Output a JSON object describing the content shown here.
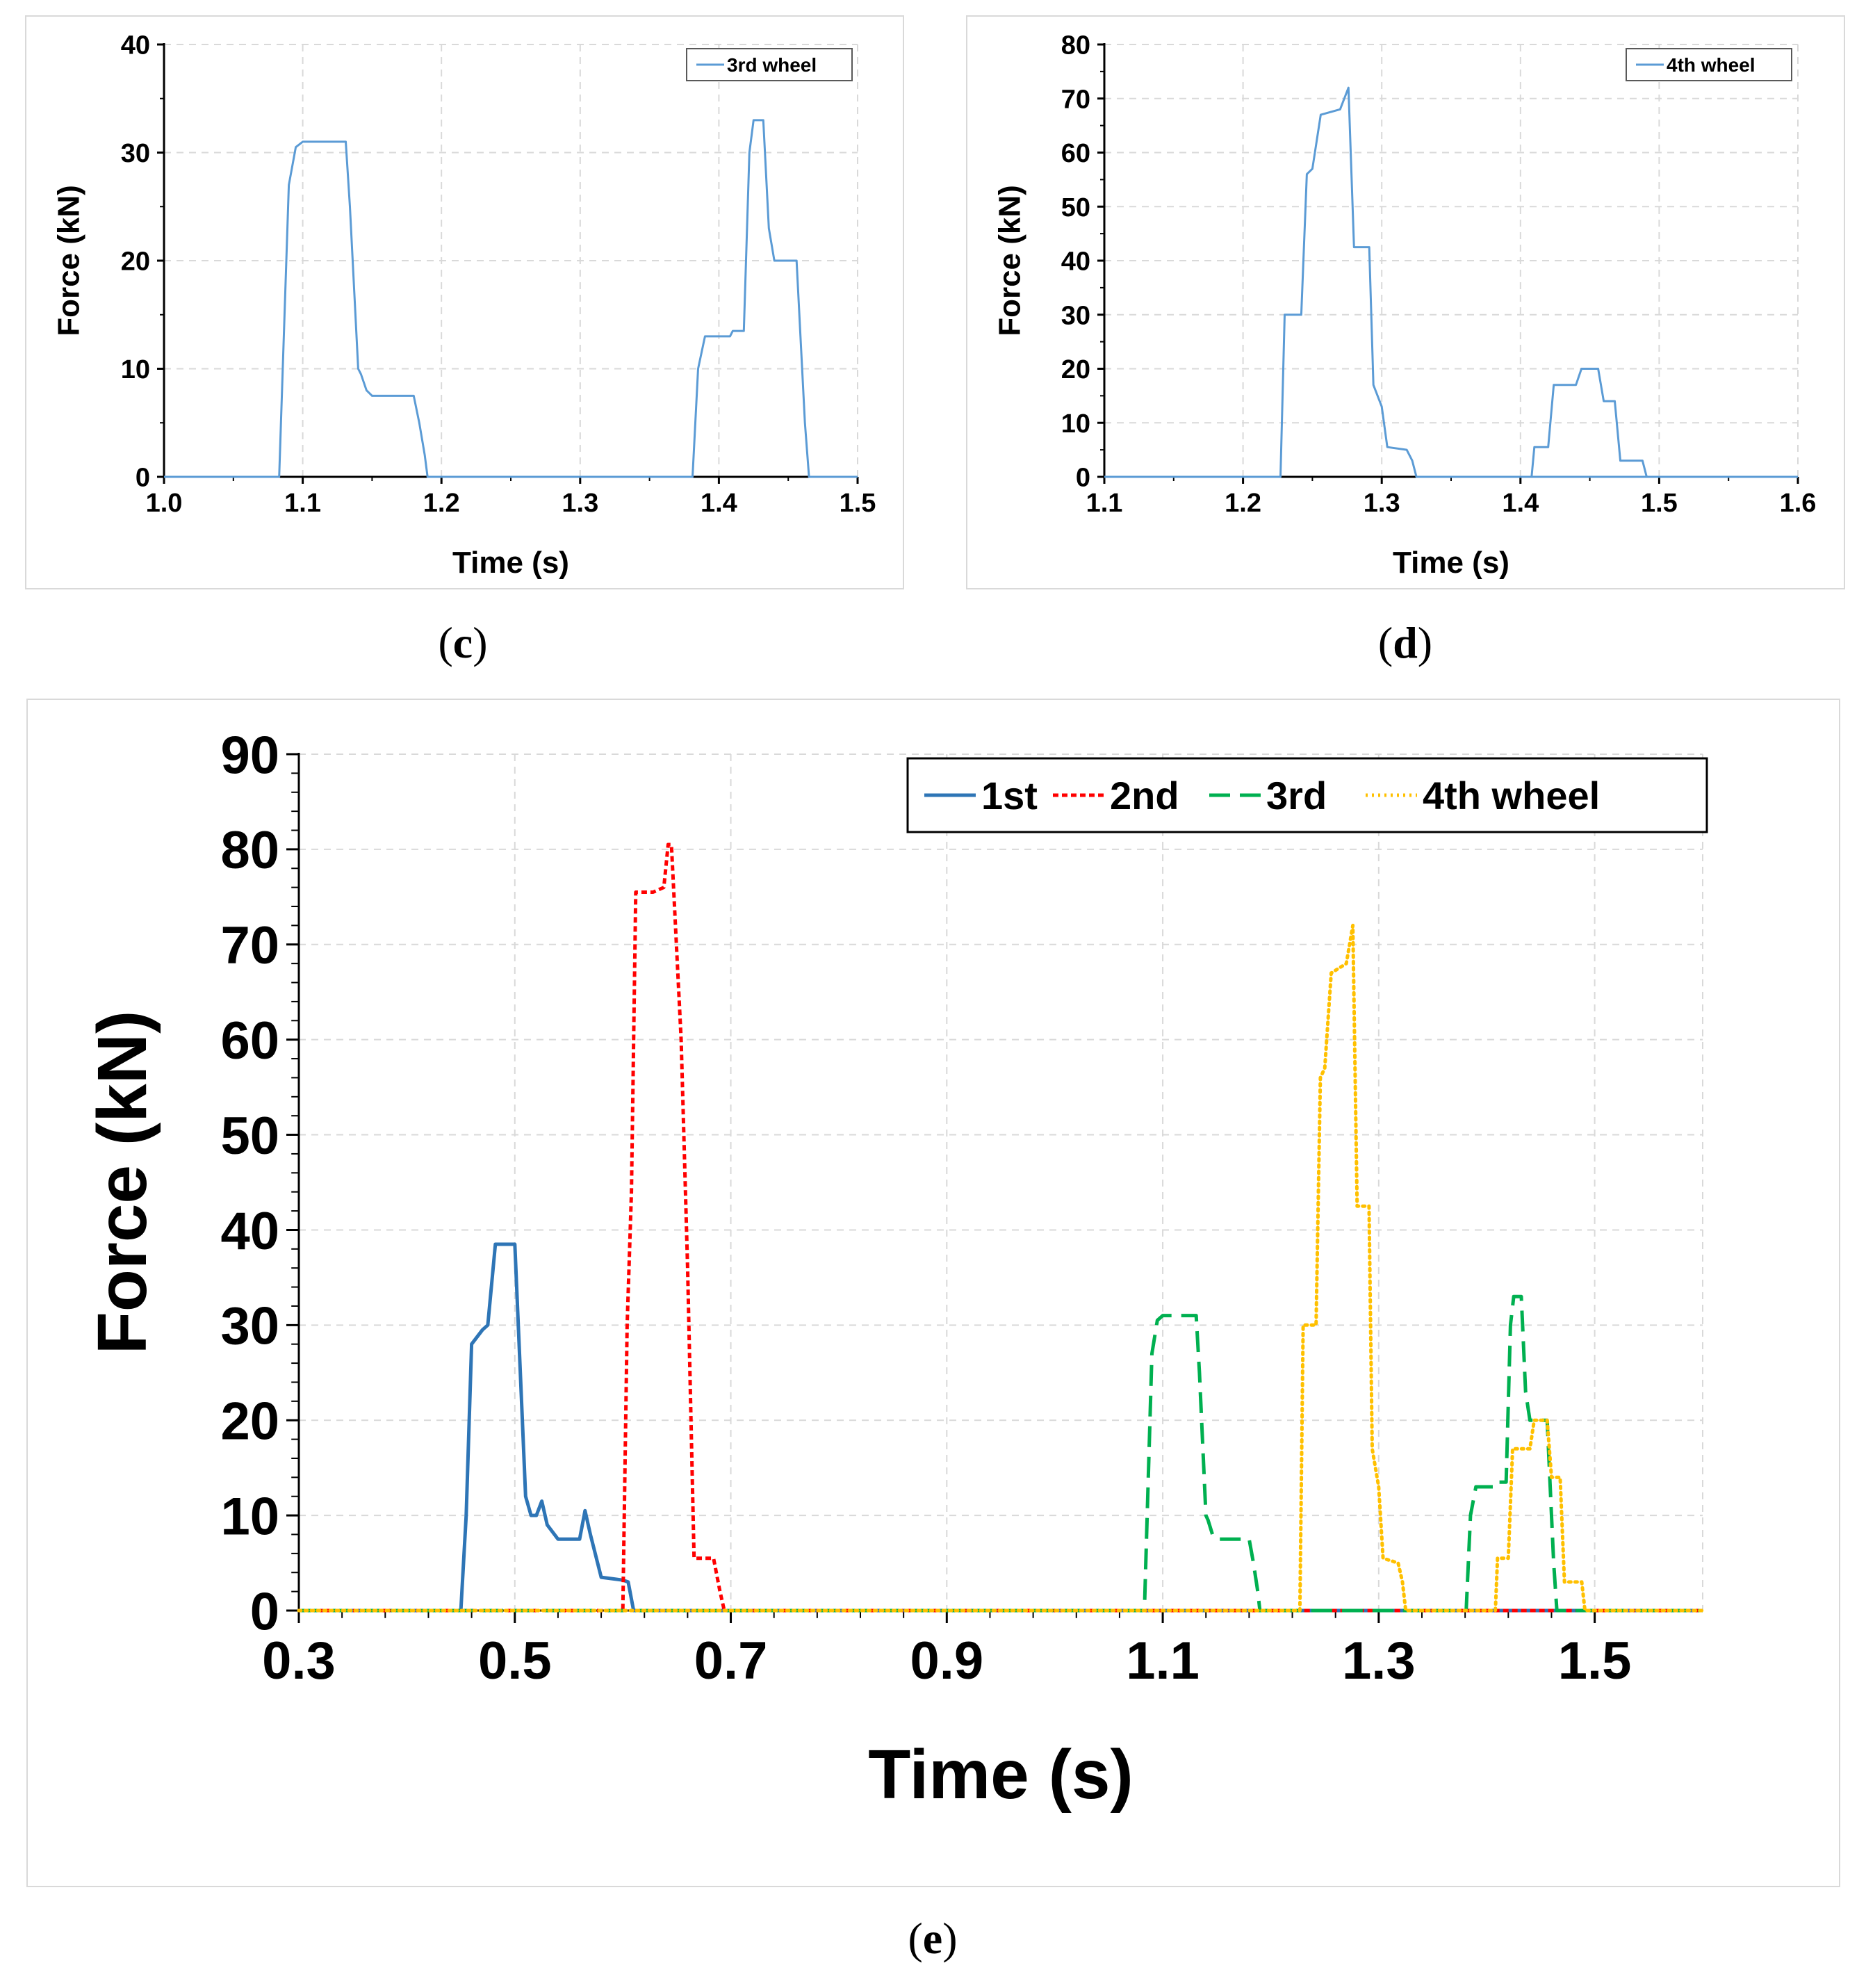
{
  "captions": {
    "c": "c",
    "d": "d",
    "e": "e"
  },
  "chart_data": [
    {
      "id": "c",
      "type": "line",
      "xlabel": "Time (s)",
      "ylabel": "Force (kN)",
      "xlim": [
        1.0,
        1.5
      ],
      "ylim": [
        0,
        40
      ],
      "xticks": [
        "1.0",
        "1.1",
        "1.2",
        "1.3",
        "1.4",
        "1.5"
      ],
      "yticks": [
        "0",
        "10",
        "20",
        "30",
        "40"
      ],
      "grid": true,
      "legend_position": "top-right",
      "series": [
        {
          "name": "3rd wheel",
          "color": "#5b9bd5",
          "dash": "solid",
          "x": [
            1.0,
            1.083,
            1.09,
            1.095,
            1.1,
            1.131,
            1.134,
            1.14,
            1.142,
            1.146,
            1.15,
            1.18,
            1.184,
            1.188,
            1.19,
            1.381,
            1.385,
            1.39,
            1.408,
            1.41,
            1.418,
            1.422,
            1.425,
            1.432,
            1.436,
            1.44,
            1.456,
            1.462,
            1.465,
            1.5
          ],
          "y": [
            0,
            0,
            27,
            30.5,
            31,
            31,
            25,
            10,
            9.5,
            8,
            7.5,
            7.5,
            5,
            2,
            0,
            0,
            10,
            13,
            13,
            13.5,
            13.5,
            30,
            33,
            33,
            23,
            20,
            20,
            5,
            0,
            0
          ]
        }
      ]
    },
    {
      "id": "d",
      "type": "line",
      "xlabel": "Time (s)",
      "ylabel": "Force (kN)",
      "xlim": [
        1.1,
        1.6
      ],
      "ylim": [
        0,
        80
      ],
      "xticks": [
        "1.1",
        "1.2",
        "1.3",
        "1.4",
        "1.5",
        "1.6"
      ],
      "yticks": [
        "0",
        "10",
        "20",
        "30",
        "40",
        "50",
        "60",
        "70",
        "80"
      ],
      "grid": true,
      "legend_position": "top-right",
      "series": [
        {
          "name": "4th wheel",
          "color": "#5b9bd5",
          "dash": "solid",
          "x": [
            1.1,
            1.227,
            1.23,
            1.242,
            1.246,
            1.25,
            1.256,
            1.27,
            1.276,
            1.28,
            1.291,
            1.294,
            1.3,
            1.304,
            1.318,
            1.322,
            1.325,
            1.6
          ],
          "y": [
            0,
            0,
            30,
            30,
            56,
            57,
            67,
            68,
            72,
            42.5,
            42.5,
            17,
            13,
            5.5,
            5,
            3,
            0,
            0
          ],
          "x2": [
            1.408,
            1.41,
            1.42,
            1.424,
            1.44,
            1.444,
            1.456,
            1.46,
            1.468,
            1.472,
            1.488,
            1.491
          ],
          "y2": [
            0,
            5.5,
            5.5,
            17,
            17,
            20,
            20,
            14,
            14,
            3,
            3,
            0
          ]
        }
      ]
    },
    {
      "id": "e",
      "type": "line",
      "xlabel": "Time (s)",
      "ylabel": "Force (kN)",
      "xlim": [
        0.3,
        1.6
      ],
      "ylim": [
        0,
        90
      ],
      "xticks": [
        "0.3",
        "0.5",
        "0.7",
        "0.9",
        "1.1",
        "1.3",
        "1.5"
      ],
      "yticks": [
        "0",
        "10",
        "20",
        "30",
        "40",
        "50",
        "60",
        "70",
        "80",
        "90"
      ],
      "grid": true,
      "legend_position": "top-right",
      "legend_labels": [
        "1st",
        "2nd",
        "3rd",
        "4th wheel"
      ],
      "series": [
        {
          "name": "1st",
          "color": "#2e75b6",
          "dash": "solid",
          "x": [
            0.3,
            0.45,
            0.455,
            0.46,
            0.47,
            0.475,
            0.482,
            0.5,
            0.51,
            0.515,
            0.52,
            0.525,
            0.53,
            0.54,
            0.56,
            0.565,
            0.57,
            0.58,
            0.6,
            0.605,
            0.61,
            1.6
          ],
          "y": [
            0,
            0,
            10,
            28,
            29.5,
            30,
            38.5,
            38.5,
            12,
            10,
            10,
            11.5,
            9,
            7.5,
            7.5,
            10.5,
            8,
            3.5,
            3.2,
            3,
            0,
            0
          ]
        },
        {
          "name": "2nd",
          "color": "#ff0000",
          "dash": "8,5",
          "x": [
            0.3,
            0.6,
            0.604,
            0.608,
            0.612,
            0.625,
            0.628,
            0.638,
            0.642,
            0.645,
            0.654,
            0.66,
            0.666,
            0.684,
            0.69,
            0.694,
            1.6
          ],
          "y": [
            0,
            0,
            30,
            44,
            75.5,
            75.5,
            75.5,
            76,
            80.5,
            80.5,
            60,
            36,
            5.5,
            5.5,
            2,
            0,
            0
          ]
        },
        {
          "name": "3rd",
          "color": "#00b050",
          "dash": "30,14",
          "x": [
            0.3,
            1.083,
            1.09,
            1.095,
            1.1,
            1.131,
            1.134,
            1.14,
            1.142,
            1.146,
            1.15,
            1.18,
            1.184,
            1.188,
            1.19,
            1.381,
            1.385,
            1.39,
            1.408,
            1.41,
            1.418,
            1.422,
            1.425,
            1.432,
            1.436,
            1.44,
            1.456,
            1.462,
            1.465,
            1.6
          ],
          "y": [
            0,
            0,
            27,
            30.5,
            31,
            31,
            25,
            10,
            9.5,
            8,
            7.5,
            7.5,
            5,
            2,
            0,
            0,
            10,
            13,
            13,
            13.5,
            13.5,
            30,
            33,
            33,
            23,
            20,
            20,
            5,
            0,
            0
          ]
        },
        {
          "name": "4th wheel",
          "color": "#ffc000",
          "dash": "3,6",
          "x": [
            0.3,
            1.227,
            1.23,
            1.242,
            1.246,
            1.25,
            1.256,
            1.27,
            1.276,
            1.28,
            1.291,
            1.294,
            1.3,
            1.304,
            1.318,
            1.322,
            1.325,
            1.408,
            1.41,
            1.42,
            1.424,
            1.44,
            1.444,
            1.456,
            1.46,
            1.468,
            1.472,
            1.488,
            1.491,
            1.6
          ],
          "y": [
            0,
            0,
            30,
            30,
            56,
            57,
            67,
            68,
            72,
            42.5,
            42.5,
            17,
            13,
            5.5,
            5,
            3,
            0,
            0,
            5.5,
            5.5,
            17,
            17,
            20,
            20,
            14,
            14,
            3,
            3,
            0,
            0
          ]
        }
      ]
    }
  ]
}
